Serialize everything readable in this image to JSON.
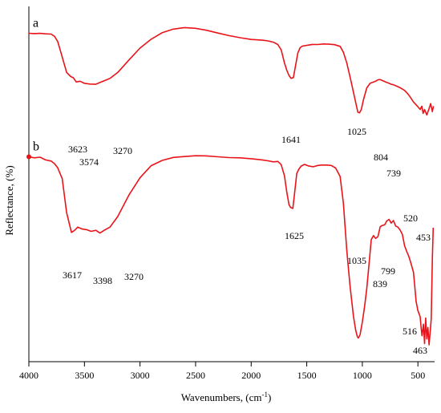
{
  "chart_data": {
    "type": "line",
    "xlabel": "Wavenumbers, (cm",
    "xlabel_sup": "-1",
    "xlabel_suffix": ")",
    "ylabel": "Reflectance, (%)",
    "xlim": [
      4000,
      350
    ],
    "x_reversed": true,
    "yaxis_tick_labels": false,
    "line_color": "#e8141a",
    "x_ticks": [
      4000,
      3500,
      3000,
      2500,
      2000,
      1500,
      1000,
      500
    ],
    "series": [
      {
        "name": "a",
        "x": [
          4000,
          3950,
          3900,
          3850,
          3800,
          3770,
          3740,
          3700,
          3660,
          3623,
          3600,
          3574,
          3540,
          3500,
          3450,
          3400,
          3350,
          3300,
          3270,
          3200,
          3100,
          3000,
          2900,
          2800,
          2700,
          2600,
          2500,
          2400,
          2300,
          2200,
          2100,
          2000,
          1900,
          1850,
          1800,
          1760,
          1730,
          1700,
          1680,
          1660,
          1641,
          1620,
          1600,
          1580,
          1560,
          1540,
          1500,
          1450,
          1400,
          1350,
          1300,
          1250,
          1200,
          1170,
          1140,
          1100,
          1070,
          1050,
          1040,
          1025,
          1010,
          990,
          960,
          930,
          900,
          880,
          860,
          840,
          820,
          804,
          780,
          760,
          739,
          720,
          700,
          680,
          660,
          640,
          620,
          600,
          580,
          560,
          540,
          520,
          500,
          480,
          465,
          453,
          440,
          420,
          400,
          385,
          370,
          360
        ],
        "y": [
          99.0,
          98.7,
          98.9,
          98.5,
          98.3,
          96.5,
          92.0,
          79.0,
          66.0,
          62.5,
          61.5,
          58.0,
          58.6,
          56.8,
          56.2,
          56.0,
          58.0,
          59.8,
          61.0,
          66.0,
          76.5,
          86.5,
          94.0,
          99.5,
          102.5,
          103.8,
          103.2,
          101.5,
          99.2,
          97.0,
          95.3,
          93.8,
          93.2,
          92.6,
          91.5,
          89.5,
          85.0,
          74.0,
          68.0,
          63.5,
          61.0,
          61.6,
          72.0,
          82.5,
          86.8,
          88.2,
          88.8,
          89.6,
          89.5,
          90.0,
          89.8,
          89.4,
          88.0,
          83.0,
          74.0,
          58.0,
          45.0,
          36.5,
          32.5,
          32.0,
          34.5,
          43.0,
          53.0,
          56.8,
          58.0,
          58.6,
          59.8,
          60.0,
          59.2,
          58.5,
          57.6,
          56.8,
          56.0,
          55.6,
          54.8,
          54.0,
          53.1,
          52.0,
          50.8,
          49.0,
          46.7,
          44.0,
          41.1,
          39.1,
          37.1,
          34.8,
          37.6,
          31.5,
          34.8,
          30.2,
          35.5,
          39.7,
          33.0,
          37.6
        ]
      },
      {
        "name": "b",
        "x": [
          4000,
          3950,
          3900,
          3850,
          3800,
          3770,
          3740,
          3700,
          3660,
          3617,
          3590,
          3560,
          3520,
          3480,
          3440,
          3398,
          3360,
          3320,
          3270,
          3200,
          3100,
          3000,
          2900,
          2800,
          2700,
          2600,
          2500,
          2400,
          2300,
          2200,
          2100,
          2000,
          1900,
          1850,
          1800,
          1760,
          1730,
          1700,
          1680,
          1660,
          1645,
          1625,
          1610,
          1590,
          1570,
          1550,
          1520,
          1480,
          1440,
          1400,
          1360,
          1320,
          1280,
          1240,
          1200,
          1170,
          1140,
          1110,
          1080,
          1060,
          1045,
          1035,
          1020,
          1000,
          980,
          960,
          940,
          920,
          900,
          880,
          860,
          839,
          820,
          799,
          780,
          760,
          740,
          720,
          700,
          680,
          660,
          640,
          620,
          600,
          580,
          560,
          540,
          516,
          500,
          480,
          470,
          463,
          450,
          440,
          430,
          420,
          410,
          400,
          390,
          380,
          370,
          362
        ],
        "y": [
          88.5,
          88.0,
          88.3,
          87.0,
          86.5,
          85.3,
          83.3,
          78.2,
          62.2,
          52.9,
          53.8,
          55.4,
          54.5,
          54.2,
          53.4,
          53.9,
          52.6,
          54.0,
          55.4,
          60.4,
          70.5,
          78.6,
          84.3,
          86.8,
          88.2,
          88.6,
          89.0,
          88.9,
          88.5,
          88.1,
          88.0,
          87.6,
          87.0,
          86.6,
          86.1,
          86.3,
          84.8,
          79.5,
          72.0,
          66.0,
          64.6,
          64.2,
          71.0,
          80.6,
          82.8,
          84.1,
          84.9,
          84.1,
          83.8,
          84.4,
          84.6,
          84.6,
          84.4,
          83.2,
          79.2,
          66.5,
          44.5,
          27.5,
          13.5,
          6.9,
          3.8,
          3.2,
          4.8,
          10.8,
          18.0,
          26.4,
          37.8,
          49.5,
          51.4,
          50.1,
          50.9,
          55.6,
          56.2,
          56.5,
          58.3,
          59.0,
          57.3,
          58.5,
          55.9,
          55.4,
          54.0,
          52.0,
          46.6,
          43.9,
          41.4,
          37.9,
          34.1,
          20.3,
          16.1,
          13.2,
          7.3,
          4.3,
          9.7,
          0.6,
          12.6,
          2.8,
          8.2,
          0.0,
          6.0,
          12.1,
          40.2,
          55.1
        ]
      }
    ],
    "peak_labels_a": [
      "3623",
      "3574",
      "3270",
      "1641",
      "1025",
      "804",
      "739",
      "520",
      "453"
    ],
    "peak_labels_b": [
      "3617",
      "3398",
      "3270",
      "1625",
      "1035",
      "839",
      "799",
      "516",
      "463"
    ]
  }
}
